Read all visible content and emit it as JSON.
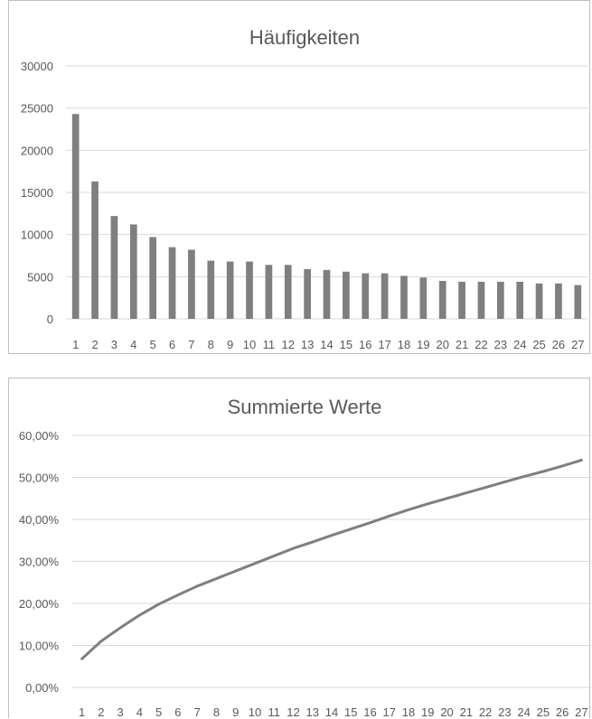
{
  "chart_data": [
    {
      "type": "bar",
      "title": "Häufigkeiten",
      "categories": [
        "1",
        "2",
        "3",
        "4",
        "5",
        "6",
        "7",
        "8",
        "9",
        "10",
        "11",
        "12",
        "13",
        "14",
        "15",
        "16",
        "17",
        "18",
        "19",
        "20",
        "21",
        "22",
        "23",
        "24",
        "25",
        "26",
        "27"
      ],
      "values": [
        24300,
        16300,
        12200,
        11200,
        9700,
        8500,
        8200,
        6900,
        6800,
        6800,
        6400,
        6400,
        5900,
        5800,
        5600,
        5400,
        5400,
        5100,
        4900,
        4500,
        4400,
        4400,
        4400,
        4400,
        4200,
        4200,
        4000
      ],
      "y_ticks": [
        "0",
        "5000",
        "10000",
        "15000",
        "20000",
        "25000",
        "30000"
      ],
      "ylim": [
        0,
        30000
      ],
      "grid": true,
      "colors": {
        "bar": "#7f7f7f",
        "grid": "#d9d9d9",
        "text": "#595959"
      }
    },
    {
      "type": "line",
      "title": "Summierte Werte",
      "categories": [
        "1",
        "2",
        "3",
        "4",
        "5",
        "6",
        "7",
        "8",
        "9",
        "10",
        "11",
        "12",
        "13",
        "14",
        "15",
        "16",
        "17",
        "18",
        "19",
        "20",
        "21",
        "22",
        "23",
        "24",
        "25",
        "26",
        "27"
      ],
      "values": [
        0.068,
        0.11,
        0.142,
        0.172,
        0.198,
        0.22,
        0.241,
        0.259,
        0.277,
        0.295,
        0.313,
        0.331,
        0.346,
        0.362,
        0.377,
        0.392,
        0.408,
        0.423,
        0.437,
        0.45,
        0.463,
        0.476,
        0.489,
        0.502,
        0.514,
        0.527,
        0.541
      ],
      "y_ticks": [
        "0,00%",
        "10,00%",
        "20,00%",
        "30,00%",
        "40,00%",
        "50,00%",
        "60,00%"
      ],
      "ylim": [
        0,
        0.6
      ],
      "grid": true,
      "colors": {
        "line": "#7f7f7f",
        "grid": "#d9d9d9",
        "text": "#595959"
      }
    }
  ]
}
